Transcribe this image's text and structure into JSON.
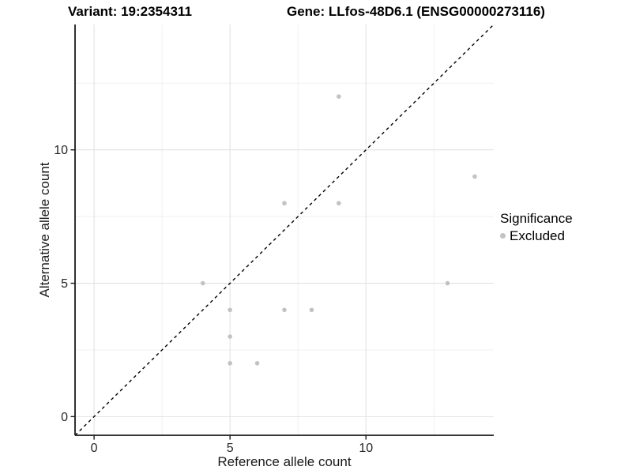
{
  "chart_data": {
    "type": "scatter",
    "title_left": "Variant: 19:2354311",
    "title_right": "Gene: LLfos-48D6.1 (ENSG00000273116)",
    "xlabel": "Reference allele count",
    "ylabel": "Alternative allele count",
    "xlim": [
      -0.7,
      14.7
    ],
    "ylim": [
      -0.7,
      14.7
    ],
    "x_ticks": [
      0,
      5,
      10
    ],
    "y_ticks": [
      0,
      5,
      10
    ],
    "x_minor_ticks": [
      2.5,
      7.5,
      12.5
    ],
    "y_minor_ticks": [
      2.5,
      7.5,
      12.5
    ],
    "grid": "major+minor",
    "reference_line": {
      "type": "identity",
      "style": "dashed",
      "color": "#000000"
    },
    "legend": {
      "title": "Significance",
      "position": "right",
      "items": [
        {
          "label": "Excluded",
          "color": "#c2c2c2"
        }
      ]
    },
    "series": [
      {
        "name": "Excluded",
        "color": "#c2c2c2",
        "points": [
          {
            "x": 4,
            "y": 5
          },
          {
            "x": 5,
            "y": 2
          },
          {
            "x": 5,
            "y": 3
          },
          {
            "x": 5,
            "y": 4
          },
          {
            "x": 6,
            "y": 2
          },
          {
            "x": 7,
            "y": 4
          },
          {
            "x": 7,
            "y": 8
          },
          {
            "x": 8,
            "y": 4
          },
          {
            "x": 9,
            "y": 8
          },
          {
            "x": 9,
            "y": 12
          },
          {
            "x": 13,
            "y": 5
          },
          {
            "x": 14,
            "y": 9
          }
        ]
      }
    ],
    "style_colors": {
      "grid_major": "#e2e2e2",
      "grid_minor": "#efefef",
      "axis_line": "#1a1a1a",
      "tick_text": "#262626",
      "point": "#c2c2c2"
    }
  }
}
